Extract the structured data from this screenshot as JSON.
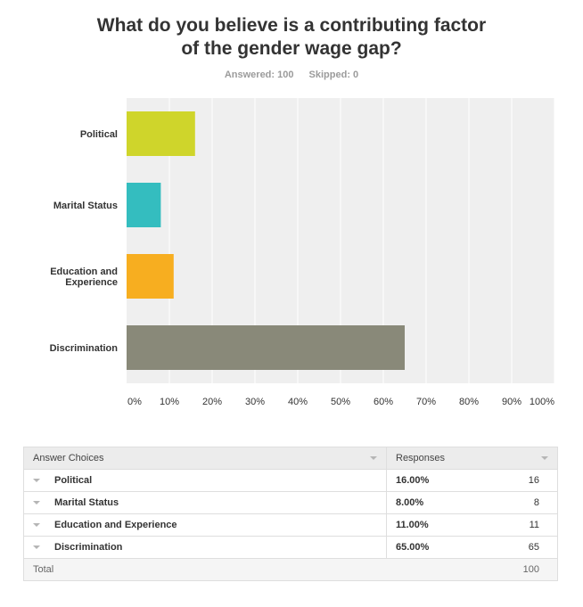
{
  "title": "What do you believe is a contributing factor of the gender wage gap?",
  "title_line1": "What do you believe is a contributing factor",
  "title_line2": "of the gender wage gap?",
  "answered": "Answered: 100",
  "skipped": "Skipped: 0",
  "chart_data": {
    "type": "bar",
    "orientation": "horizontal",
    "categories": [
      "Political",
      "Marital Status",
      "Education and Experience",
      "Discrimination"
    ],
    "values": [
      16,
      8,
      11,
      65
    ],
    "colors": [
      "#cfd52b",
      "#34bdbf",
      "#f7ae20",
      "#898979"
    ],
    "xlim": [
      0,
      100
    ],
    "xticks": [
      "0%",
      "10%",
      "20%",
      "30%",
      "40%",
      "50%",
      "60%",
      "70%",
      "80%",
      "90%",
      "100%"
    ],
    "grid": true,
    "plot_background": "#efefef",
    "gridline_color": "#ffffff"
  },
  "table": {
    "headers": {
      "choices": "Answer Choices",
      "responses": "Responses"
    },
    "rows": [
      {
        "label": "Political",
        "percent": "16.00%",
        "count": "16"
      },
      {
        "label": "Marital Status",
        "percent": "8.00%",
        "count": "8"
      },
      {
        "label": "Education and Experience",
        "percent": "11.00%",
        "count": "11"
      },
      {
        "label": "Discrimination",
        "percent": "65.00%",
        "count": "65"
      }
    ],
    "total_label": "Total",
    "total_count": "100"
  }
}
